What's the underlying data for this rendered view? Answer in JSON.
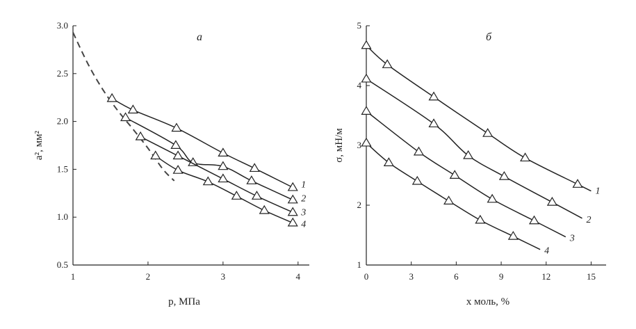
{
  "chart_data": [
    {
      "type": "line",
      "title": "a",
      "xlabel": "p, МПа",
      "ylabel": "a², мм²",
      "xlim": [
        1,
        4.15
      ],
      "ylim": [
        0.5,
        3.0
      ],
      "xticks": [
        1,
        2,
        3,
        4
      ],
      "yticks": [
        0.5,
        1.0,
        1.5,
        2.0,
        2.5,
        3.0
      ],
      "ytick_labels": [
        "0.5",
        "1.0",
        "1.5",
        "2.0",
        "2.5",
        "3.0"
      ],
      "dashed_curve": {
        "x": [
          1.0,
          1.2,
          1.4,
          1.6,
          1.8,
          2.0,
          2.2,
          2.35
        ],
        "y": [
          2.93,
          2.6,
          2.33,
          2.11,
          1.92,
          1.72,
          1.5,
          1.38
        ]
      },
      "series": [
        {
          "name": "1",
          "x": [
            1.52,
            1.8,
            2.38,
            3.0,
            3.42,
            3.93
          ],
          "y": [
            2.24,
            2.12,
            1.93,
            1.67,
            1.51,
            1.31
          ]
        },
        {
          "name": "2",
          "x": [
            1.7,
            2.37,
            2.6,
            3.0,
            3.38,
            3.93
          ],
          "y": [
            2.04,
            1.75,
            1.57,
            1.53,
            1.38,
            1.18
          ]
        },
        {
          "name": "3",
          "x": [
            1.9,
            2.4,
            3.0,
            3.45,
            3.93
          ],
          "y": [
            1.84,
            1.64,
            1.4,
            1.22,
            1.05
          ]
        },
        {
          "name": "4",
          "x": [
            2.1,
            2.4,
            2.8,
            3.18,
            3.55,
            3.93
          ],
          "y": [
            1.64,
            1.49,
            1.37,
            1.22,
            1.07,
            0.94
          ]
        }
      ]
    },
    {
      "type": "line",
      "title": "б",
      "xlabel": "x моль, %",
      "ylabel": "σ, мН/м",
      "xlim": [
        0,
        16
      ],
      "ylim": [
        1,
        5
      ],
      "xticks": [
        0,
        3,
        6,
        9,
        12,
        15
      ],
      "yticks": [
        1,
        2,
        3,
        4,
        5
      ],
      "ytick_labels": [
        "1",
        "2",
        "3",
        "4",
        "5"
      ],
      "series": [
        {
          "name": "1",
          "x": [
            0,
            1.4,
            4.5,
            8.1,
            10.6,
            14.1
          ],
          "y": [
            4.67,
            4.35,
            3.81,
            3.2,
            2.79,
            2.35
          ]
        },
        {
          "name": "2",
          "x": [
            0,
            4.5,
            6.8,
            9.2,
            12.4
          ],
          "y": [
            4.11,
            3.36,
            2.83,
            2.48,
            2.05
          ]
        },
        {
          "name": "3",
          "x": [
            0,
            3.5,
            5.9,
            8.4,
            11.2
          ],
          "y": [
            3.57,
            2.89,
            2.5,
            2.1,
            1.74
          ]
        },
        {
          "name": "4",
          "x": [
            0,
            1.5,
            3.4,
            5.5,
            7.6,
            9.8
          ],
          "y": [
            3.04,
            2.71,
            2.4,
            2.07,
            1.75,
            1.48
          ]
        }
      ]
    }
  ]
}
